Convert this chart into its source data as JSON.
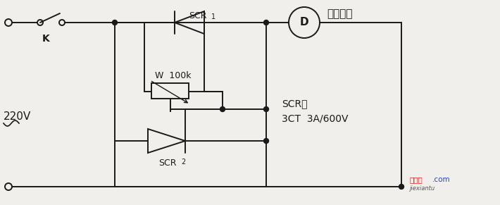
{
  "bg_color": "#f0efeb",
  "line_color": "#1a1a1a",
  "text_color": "#1a1a1a",
  "wm_red": "#cc2222",
  "wm_blue": "#2244cc",
  "fig_width": 7.1,
  "fig_height": 2.91,
  "dpi": 100,
  "title_text": "风扇马达",
  "label_K": "K",
  "label_220V": "220V",
  "label_SCR1": "SCR",
  "label_SCR1_sub": "1",
  "label_SCR2": "SCR",
  "label_SCR2_sub": "2",
  "label_W": "W  100k",
  "label_spec1": "SCR：",
  "label_spec2": "3CT  3A/600V",
  "label_D": "D",
  "wm_text1": "接线图",
  "wm_text2": ".com",
  "wm_text3": "jiexiantu"
}
